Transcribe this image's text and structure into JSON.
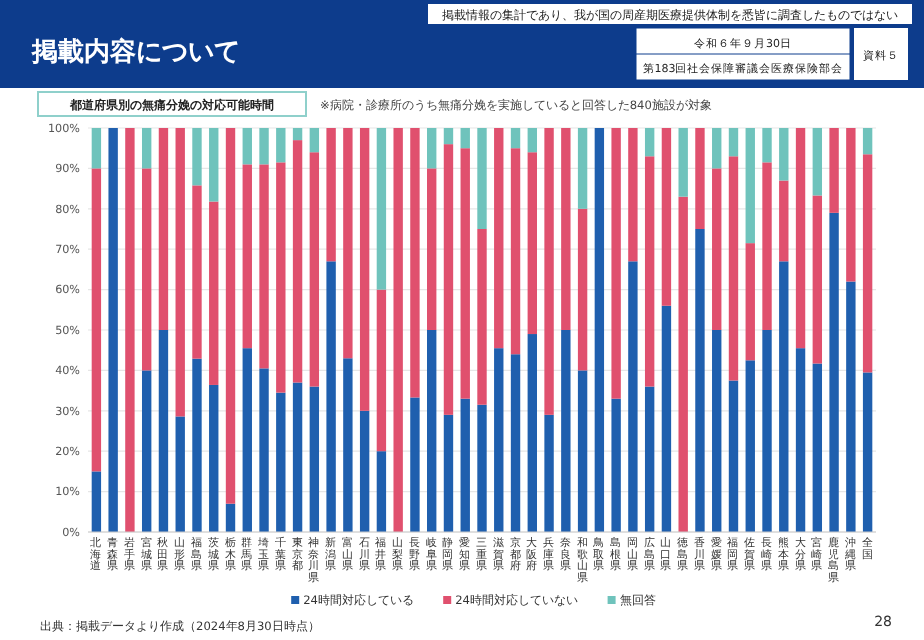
{
  "chart_data": {
    "type": "bar",
    "stacked": true,
    "title": "掲載内容について",
    "subtitle": "都道府県別の無痛分娩の対応可能時間",
    "annotations": [
      "掲載情報の集計であり、我が国の周産期医療提供体制を悉皆に調査したものではない",
      "令和６年９月30日",
      "第183回社会保障審議会医療保険部会",
      "資料５",
      "※病院・診療所のうち無痛分娩を実施していると回答した840施設が対象",
      "出典：掲載データより作成（2024年8月30日時点）",
      "28"
    ],
    "categories": [
      "北海道",
      "青森県",
      "岩手県",
      "宮城県",
      "秋田県",
      "山形県",
      "福島県",
      "茨城県",
      "栃木県",
      "群馬県",
      "埼玉県",
      "千葉県",
      "東京都",
      "神奈川県",
      "新潟県",
      "富山県",
      "石川県",
      "福井県",
      "山梨県",
      "長野県",
      "岐阜県",
      "静岡県",
      "愛知県",
      "三重県",
      "滋賀県",
      "京都府",
      "大阪府",
      "兵庫県",
      "奈良県",
      "和歌山県",
      "鳥取県",
      "島根県",
      "岡山県",
      "広島県",
      "山口県",
      "徳島県",
      "香川県",
      "愛媛県",
      "福岡県",
      "佐賀県",
      "長崎県",
      "熊本県",
      "大分県",
      "宮崎県",
      "鹿児島県",
      "沖縄県",
      "全国"
    ],
    "series": [
      {
        "name": "24時間対応している",
        "color": "#1f5fae",
        "values": [
          15,
          100,
          0,
          40,
          50,
          28.6,
          42.9,
          36.4,
          7,
          45.5,
          40.5,
          34.5,
          37,
          36,
          67,
          43,
          30,
          20,
          0,
          33.3,
          50,
          29,
          33,
          31.5,
          45.5,
          44,
          49,
          29,
          50,
          40,
          100,
          33,
          67,
          36,
          56,
          0,
          75,
          50,
          37.5,
          42.5,
          50,
          67,
          45.5,
          41.7,
          79,
          62,
          39.5
        ]
      },
      {
        "name": "24時間対応していない",
        "color": "#e0506e",
        "values": [
          75,
          0,
          100,
          50,
          50,
          71.4,
          42.9,
          45.4,
          93,
          45.5,
          50.5,
          57,
          60,
          58,
          33,
          57,
          70,
          40,
          100,
          66.7,
          40,
          67,
          62,
          43.5,
          54.5,
          51,
          45,
          71,
          50,
          40,
          0,
          67,
          33,
          57,
          44,
          83,
          25,
          40,
          55.5,
          29,
          41.5,
          20,
          54.5,
          41.6,
          21,
          38,
          54
        ]
      },
      {
        "name": "無回答",
        "color": "#6fc3bc",
        "values": [
          10,
          0,
          0,
          10,
          0,
          0,
          14.2,
          18.2,
          0,
          9,
          9,
          8.5,
          3,
          6,
          0,
          0,
          0,
          40,
          0,
          0,
          10,
          4,
          5,
          25,
          0,
          5,
          6,
          0,
          0,
          20,
          0,
          0,
          0,
          7,
          0,
          17,
          0,
          10,
          7,
          28.5,
          8.5,
          13,
          0,
          16.7,
          0,
          0,
          6.5
        ]
      }
    ],
    "ylim": [
      0,
      100
    ],
    "yticks": [
      {
        "value": 0,
        "label": "0%"
      },
      {
        "value": 10,
        "label": "10%"
      },
      {
        "value": 20,
        "label": "20%"
      },
      {
        "value": 30,
        "label": "30%"
      },
      {
        "value": 40,
        "label": "40%"
      },
      {
        "value": 50,
        "label": "50%"
      },
      {
        "value": 60,
        "label": "60%"
      },
      {
        "value": 70,
        "label": "70%"
      },
      {
        "value": 80,
        "label": "80%"
      },
      {
        "value": 90,
        "label": "90%"
      },
      {
        "value": 100,
        "label": "100%"
      }
    ],
    "grid": "y",
    "legend": "bottom"
  }
}
